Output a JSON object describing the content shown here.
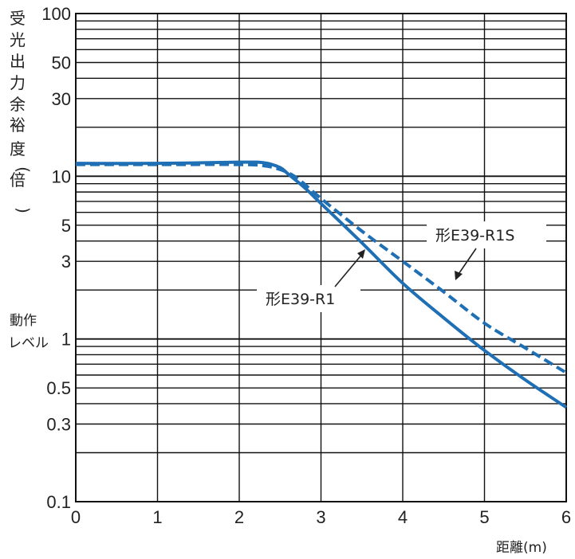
{
  "chart_data": {
    "type": "line",
    "ylabel": "受光出力余裕度(倍)",
    "xlabel": "距離(m)",
    "y_scale": "log",
    "xlim": [
      0,
      6
    ],
    "ylim": [
      0.1,
      100
    ],
    "grid": true,
    "x_ticks": [
      "0",
      "1",
      "2",
      "3",
      "4",
      "5",
      "6"
    ],
    "y_ticks": [
      {
        "value": 100,
        "label": "100"
      },
      {
        "value": 50,
        "label": "50"
      },
      {
        "value": 30,
        "label": "30"
      },
      {
        "value": 10,
        "label": "10"
      },
      {
        "value": 5,
        "label": "5"
      },
      {
        "value": 3,
        "label": "3"
      },
      {
        "value": 1,
        "label": "1"
      },
      {
        "value": 0.5,
        "label": "0.5"
      },
      {
        "value": 0.3,
        "label": "0.3"
      },
      {
        "value": 0.1,
        "label": "0.1"
      }
    ],
    "operation_level_label": "動作レベル",
    "series": [
      {
        "name": "形E39-R1",
        "style": "solid",
        "color": "#1f6fb5",
        "x": [
          0,
          1,
          2,
          2.3,
          2.5,
          2.6,
          2.8,
          3.0,
          3.5,
          4.0,
          4.5,
          5.0,
          5.5,
          6.0
        ],
        "y": [
          12.0,
          12.0,
          12.2,
          12.1,
          11.3,
          10.3,
          8.5,
          6.8,
          3.9,
          2.2,
          1.35,
          0.85,
          0.56,
          0.38
        ]
      },
      {
        "name": "形E39-R1S",
        "style": "dashed",
        "color": "#1f6fb5",
        "x": [
          0,
          1,
          2,
          2.3,
          2.5,
          2.7,
          3.0,
          3.5,
          4.0,
          4.5,
          5.0,
          5.5,
          6.0
        ],
        "y": [
          11.8,
          11.8,
          11.8,
          11.6,
          11.0,
          9.8,
          7.3,
          4.6,
          3.0,
          1.95,
          1.25,
          0.88,
          0.62
        ]
      }
    ],
    "colors": {
      "line": "#1f6fb5",
      "grid": "#111111",
      "text": "#222222"
    }
  }
}
